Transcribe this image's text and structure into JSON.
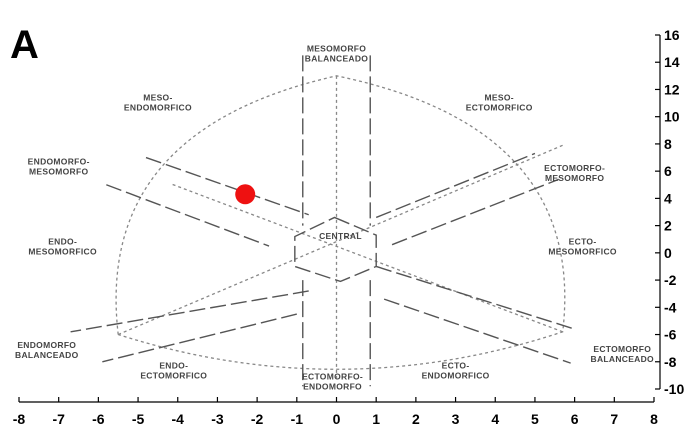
{
  "panel_label": "A",
  "chart_data": {
    "type": "scatter",
    "title": "",
    "xlabel": "",
    "ylabel": "",
    "xlim": [
      -8,
      8
    ],
    "ylim": [
      -10,
      16
    ],
    "x_ticks": [
      -8,
      -7,
      -6,
      -5,
      -4,
      -3,
      -2,
      -1,
      0,
      1,
      2,
      3,
      4,
      5,
      6,
      7,
      8
    ],
    "y_ticks": [
      -10,
      -8,
      -6,
      -4,
      -2,
      0,
      2,
      4,
      6,
      8,
      10,
      12,
      14,
      16
    ],
    "y_axis_side": "right",
    "grid": false,
    "legend": "none",
    "points": [
      {
        "x": -2.3,
        "y": 4.3,
        "color": "#ee1111"
      }
    ],
    "regions": [
      {
        "name": "mesomorfo-balanceado",
        "lines": [
          "MESOMORFO",
          "BALANCEADO"
        ],
        "x": 0.0,
        "y": 14.8
      },
      {
        "name": "meso-endomorfico",
        "lines": [
          "MESO-",
          "ENDOMORFICO"
        ],
        "x": -4.5,
        "y": 11.2
      },
      {
        "name": "meso-ectomorfico",
        "lines": [
          "MESO-",
          "ECTOMORFICO"
        ],
        "x": 4.1,
        "y": 11.2
      },
      {
        "name": "endomorfo-mesomorfo",
        "lines": [
          "ENDOMORFO-",
          "MESOMORFO"
        ],
        "x": -7.0,
        "y": 6.5
      },
      {
        "name": "ectomorfo-mesomorfo",
        "lines": [
          "ECTOMORFO-",
          "MESOMORFO"
        ],
        "x": 6.0,
        "y": 6.0
      },
      {
        "name": "central",
        "lines": [
          "CENTRAL"
        ],
        "x": 0.1,
        "y": 1.0
      },
      {
        "name": "endo-mesomorfico",
        "lines": [
          "ENDO-",
          "MESOMORFICO"
        ],
        "x": -6.9,
        "y": 0.6
      },
      {
        "name": "ecto-mesomorfico",
        "lines": [
          "ECTO-",
          "MESOMORFICO"
        ],
        "x": 6.2,
        "y": 0.6
      },
      {
        "name": "endomorfo-balanceado",
        "lines": [
          "ENDOMORFO",
          "BALANCEADO"
        ],
        "x": -7.3,
        "y": -7.0
      },
      {
        "name": "ectomorfo-balanceado",
        "lines": [
          "ECTOMORFO",
          "BALANCEADO"
        ],
        "x": 7.2,
        "y": -7.3
      },
      {
        "name": "endo-ectomorfico",
        "lines": [
          "ENDO-",
          "ECTOMORFICO"
        ],
        "x": -4.1,
        "y": -8.5
      },
      {
        "name": "ecto-endomorfico",
        "lines": [
          "ECTO-",
          "ENDOMORFICO"
        ],
        "x": 3.0,
        "y": -8.5
      },
      {
        "name": "ectomorfo-endomorfo",
        "lines": [
          "ECTOMORFO-",
          "ENDOMORFO"
        ],
        "x": -0.1,
        "y": -9.3
      }
    ]
  }
}
